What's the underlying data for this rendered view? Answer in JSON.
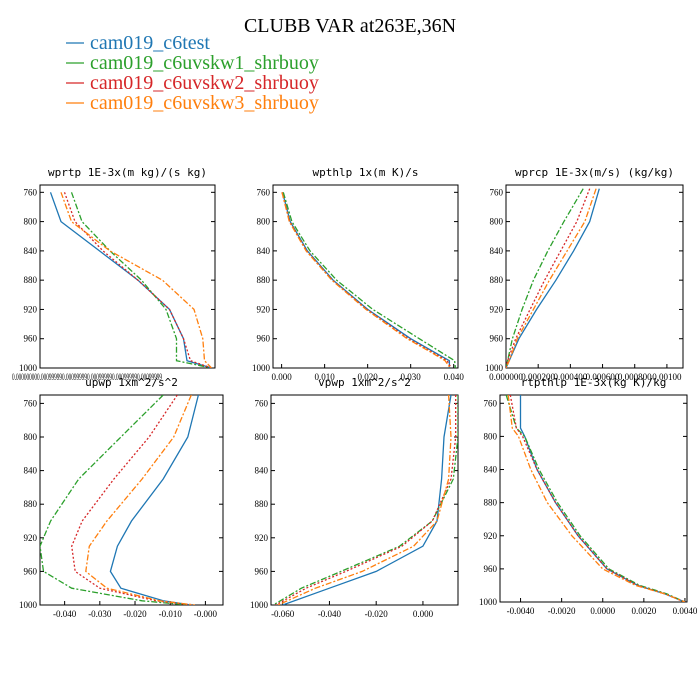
{
  "figure": {
    "title": "CLUBB VAR at263E,36N"
  },
  "legend": [
    {
      "label": "cam019_c6test",
      "color": "#1f77b4"
    },
    {
      "label": "cam019_c6uvskw1_shrbuoy",
      "color": "#2ca02c"
    },
    {
      "label": "cam019_c6uvskw2_shrbuoy",
      "color": "#d62728"
    },
    {
      "label": "cam019_c6uvskw3_shrbuoy",
      "color": "#ff7f0e"
    }
  ],
  "chart_data": [
    {
      "type": "line",
      "title": "wprtp  1E-3x(m kg)/(s kg)",
      "ylim": [
        1000,
        750
      ],
      "yticks": [
        760,
        800,
        840,
        880,
        920,
        960,
        1000
      ],
      "xlim": [
        0,
        1
      ],
      "xticks": [],
      "xtick_text": "0.000000000.000999990.000999990.000999990.000999990.00099999",
      "y": [
        760,
        800,
        840,
        880,
        920,
        960,
        990,
        1000
      ],
      "series": [
        {
          "values": [
            0.06,
            0.12,
            0.34,
            0.56,
            0.74,
            0.82,
            0.84,
            0.98
          ]
        },
        {
          "values": [
            0.18,
            0.24,
            0.4,
            0.58,
            0.72,
            0.78,
            0.78,
            0.98
          ]
        },
        {
          "values": [
            0.14,
            0.2,
            0.36,
            0.56,
            0.74,
            0.82,
            0.86,
            0.98
          ]
        },
        {
          "values": [
            0.12,
            0.18,
            0.4,
            0.7,
            0.88,
            0.93,
            0.94,
            0.98
          ]
        }
      ]
    },
    {
      "type": "line",
      "title": "wpthlp  1x(m K)/s",
      "ylim": [
        1000,
        750
      ],
      "yticks": [
        760,
        800,
        840,
        880,
        920,
        960,
        1000
      ],
      "xlim": [
        -0.002,
        0.041
      ],
      "xticks": [
        0.0,
        0.01,
        0.02,
        0.03,
        0.04
      ],
      "xtick_labels": [
        "0.000",
        "0.010",
        "0.020",
        "0.030",
        "0.040"
      ],
      "y": [
        760,
        800,
        840,
        880,
        920,
        960,
        980,
        990,
        1000
      ],
      "series": [
        {
          "values": [
            0.0002,
            0.002,
            0.006,
            0.012,
            0.02,
            0.03,
            0.036,
            0.039,
            0.039
          ]
        },
        {
          "values": [
            0.0004,
            0.0024,
            0.0066,
            0.0128,
            0.0212,
            0.032,
            0.0375,
            0.0402,
            0.0404
          ]
        },
        {
          "values": [
            0.0001,
            0.0019,
            0.0058,
            0.0118,
            0.0198,
            0.0295,
            0.0355,
            0.0385,
            0.0394
          ]
        },
        {
          "values": [
            0.0001,
            0.0018,
            0.0057,
            0.0117,
            0.0196,
            0.0292,
            0.0352,
            0.038,
            0.0392
          ]
        }
      ]
    },
    {
      "type": "line",
      "title": "wprcp  1E-3x(m/s) (kg/kg)",
      "ylim": [
        1000,
        750
      ],
      "yticks": [
        760,
        800,
        840,
        880,
        920,
        960,
        1000
      ],
      "xlim": [
        0,
        0.0011
      ],
      "xticks": [
        0,
        0.0002,
        0.0004,
        0.0006,
        0.0008,
        0.001
      ],
      "xtick_labels": [
        "0.000000",
        "0.000200",
        "0.000400",
        "0.000600",
        "0.000800",
        "0.00100"
      ],
      "y": [
        755,
        800,
        840,
        880,
        920,
        960,
        990,
        1000
      ],
      "series": [
        {
          "values": [
            0.00058,
            0.00052,
            0.00042,
            0.00031,
            0.00019,
            8e-05,
            2e-05,
            0.0
          ]
        },
        {
          "values": [
            0.00048,
            0.00036,
            0.00026,
            0.00017,
            0.0001,
            4e-05,
            1e-05,
            0.0
          ]
        },
        {
          "values": [
            0.00052,
            0.00044,
            0.00034,
            0.00024,
            0.00015,
            6e-05,
            1e-05,
            0.0
          ]
        },
        {
          "values": [
            0.00056,
            0.00049,
            0.00038,
            0.00027,
            0.00017,
            7e-05,
            2e-05,
            0.0
          ]
        }
      ]
    },
    {
      "type": "line",
      "title": "upwp  1xm^2/s^2",
      "ylim": [
        1000,
        750
      ],
      "yticks": [
        760,
        800,
        840,
        880,
        920,
        960,
        1000
      ],
      "xlim": [
        -0.047,
        0.005
      ],
      "xticks": [
        -0.04,
        -0.03,
        -0.02,
        -0.01,
        0.0
      ],
      "xtick_labels": [
        "-0.040",
        "-0.030",
        "-0.020",
        "-0.010",
        "-0.000"
      ],
      "y": [
        750,
        800,
        850,
        900,
        930,
        960,
        980,
        995,
        1000
      ],
      "series": [
        {
          "values": [
            -0.002,
            -0.005,
            -0.012,
            -0.021,
            -0.025,
            -0.027,
            -0.024,
            -0.012,
            -0.004
          ]
        },
        {
          "values": [
            -0.012,
            -0.024,
            -0.036,
            -0.044,
            -0.047,
            -0.046,
            -0.038,
            -0.018,
            -0.005
          ]
        },
        {
          "values": [
            -0.008,
            -0.016,
            -0.026,
            -0.035,
            -0.038,
            -0.037,
            -0.03,
            -0.014,
            -0.004
          ]
        },
        {
          "values": [
            -0.004,
            -0.009,
            -0.018,
            -0.028,
            -0.033,
            -0.034,
            -0.028,
            -0.013,
            -0.003
          ]
        }
      ]
    },
    {
      "type": "line",
      "title": "vpwp  1xm^2/s^2",
      "ylim": [
        1000,
        750
      ],
      "yticks": [
        760,
        800,
        840,
        880,
        920,
        960,
        1000
      ],
      "xlim": [
        -0.065,
        0.015
      ],
      "xticks": [
        -0.06,
        -0.04,
        -0.02,
        0.0
      ],
      "xtick_labels": [
        "-0.060",
        "-0.040",
        "-0.020",
        "0.000"
      ],
      "y": [
        750,
        800,
        850,
        900,
        930,
        960,
        980,
        1000
      ],
      "series": [
        {
          "values": [
            0.012,
            0.009,
            0.008,
            0.006,
            0.0,
            -0.02,
            -0.04,
            -0.06
          ]
        },
        {
          "values": [
            0.015,
            0.015,
            0.013,
            0.004,
            -0.01,
            -0.035,
            -0.052,
            -0.064
          ]
        },
        {
          "values": [
            0.014,
            0.014,
            0.012,
            0.004,
            -0.009,
            -0.033,
            -0.05,
            -0.063
          ]
        },
        {
          "values": [
            0.011,
            0.012,
            0.011,
            0.006,
            -0.004,
            -0.026,
            -0.046,
            -0.062
          ]
        }
      ]
    },
    {
      "type": "line",
      "title": "rtpthlp  1E-3x(kg K)/kg",
      "ylim": [
        1000,
        750
      ],
      "yticks": [
        760,
        800,
        840,
        880,
        920,
        960,
        1000
      ],
      "xlim": [
        -0.005,
        0.0041
      ],
      "xticks": [
        -0.004,
        -0.002,
        0.0,
        0.002,
        0.004
      ],
      "xtick_labels": [
        "-0.0040",
        "-0.0020",
        "0.0000",
        "0.0020",
        "0.0040"
      ],
      "y": [
        750,
        790,
        800,
        840,
        880,
        920,
        960,
        980,
        990,
        1000
      ],
      "series": [
        {
          "values": [
            -0.004,
            -0.004,
            -0.0038,
            -0.0032,
            -0.0023,
            -0.0012,
            0.0002,
            0.0017,
            0.003,
            0.004
          ]
        },
        {
          "values": [
            -0.0047,
            -0.0042,
            -0.0038,
            -0.0031,
            -0.0022,
            -0.0011,
            0.0003,
            0.0018,
            0.0031,
            0.004
          ]
        },
        {
          "values": [
            -0.0045,
            -0.0042,
            -0.0039,
            -0.0032,
            -0.0023,
            -0.0012,
            0.0002,
            0.0017,
            0.003,
            0.004
          ]
        },
        {
          "values": [
            -0.0046,
            -0.0044,
            -0.0041,
            -0.0035,
            -0.0027,
            -0.0015,
            0.0,
            0.0016,
            0.003,
            0.004
          ]
        }
      ]
    }
  ]
}
